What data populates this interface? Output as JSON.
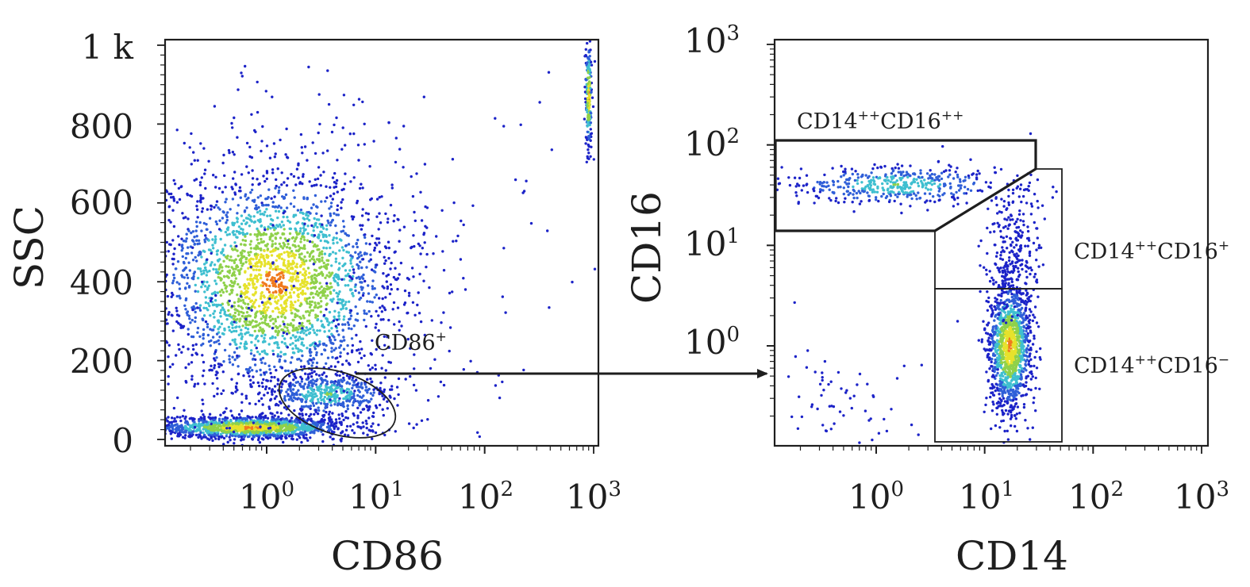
{
  "chart_data": [
    {
      "type": "scatter",
      "title": "",
      "xlabel": "CD86",
      "ylabel": "SSC",
      "x_scale": "log",
      "x_ticks": [
        "10⁰",
        "10¹",
        "10²",
        "10³"
      ],
      "x_tick_parts": [
        {
          "base": "10",
          "exp": "0"
        },
        {
          "base": "10",
          "exp": "1"
        },
        {
          "base": "10",
          "exp": "2"
        },
        {
          "base": "10",
          "exp": "3"
        }
      ],
      "y_ticks": [
        "0",
        "200",
        "400",
        "600",
        "800",
        "1 k"
      ],
      "xlim": [
        0.1,
        1000
      ],
      "ylim": [
        0,
        1000
      ],
      "grid": false,
      "color_scale": [
        "#1c23c8",
        "#2f5fd8",
        "#3fbfd0",
        "#8fd14a",
        "#e6e22c",
        "#f07a1e",
        "#e0261e"
      ],
      "populations": [
        {
          "name": "lymphocyte/debris cluster",
          "center": [
            0.7,
            30
          ],
          "spread": [
            0.45,
            14
          ],
          "count": 1400,
          "density": "high"
        },
        {
          "name": "granulocyte cloud",
          "center": [
            1.2,
            400
          ],
          "spread": [
            0.55,
            140
          ],
          "count": 2600,
          "density": "high"
        },
        {
          "name": "CD86 positive monocytes",
          "center": [
            3.6,
            115
          ],
          "spread": [
            0.28,
            28
          ],
          "count": 500,
          "density": "medium"
        },
        {
          "name": "saturated events",
          "center": [
            900,
            870
          ],
          "spread": [
            0.015,
            70
          ],
          "count": 220,
          "density": "high"
        },
        {
          "name": "background scatter",
          "center": [
            2.0,
            500
          ],
          "spread": [
            1.2,
            300
          ],
          "count": 350,
          "density": "low"
        }
      ],
      "gate": {
        "label": "CD86",
        "label_sup": "+",
        "shape": "ellipse",
        "center": [
          3.5,
          115
        ],
        "x_range": [
          1.2,
          10.5
        ],
        "y_range": [
          25,
          190
        ]
      }
    },
    {
      "type": "scatter",
      "title": "",
      "xlabel": "CD14",
      "ylabel": "CD16",
      "x_scale": "log",
      "y_scale": "log",
      "x_ticks": [
        "10⁰",
        "10¹",
        "10²",
        "10³"
      ],
      "x_tick_parts": [
        {
          "base": "10",
          "exp": "0"
        },
        {
          "base": "10",
          "exp": "1"
        },
        {
          "base": "10",
          "exp": "2"
        },
        {
          "base": "10",
          "exp": "3"
        }
      ],
      "y_ticks": [
        "10⁰",
        "10¹",
        "10²",
        "10³"
      ],
      "y_tick_parts": [
        {
          "base": "10",
          "exp": "0"
        },
        {
          "base": "10",
          "exp": "1"
        },
        {
          "base": "10",
          "exp": "2"
        },
        {
          "base": "10",
          "exp": "3"
        }
      ],
      "xlim": [
        0.1,
        1000
      ],
      "ylim": [
        0.1,
        1000
      ],
      "grid": false,
      "color_scale": [
        "#1c23c8",
        "#2f5fd8",
        "#3fbfd0",
        "#8fd14a",
        "#e6e22c",
        "#f07a1e",
        "#e0261e"
      ],
      "populations": [
        {
          "name": "CD14++CD16- classical monocytes",
          "center": [
            17,
            1.0
          ],
          "spread": [
            0.1,
            0.32
          ],
          "count": 1300,
          "density": "high"
        },
        {
          "name": "CD14++CD16++ band",
          "center": [
            1.5,
            40
          ],
          "spread": [
            0.5,
            0.1
          ],
          "count": 450,
          "density": "medium"
        },
        {
          "name": "CD14++CD16+ intermediate",
          "center": [
            18,
            9
          ],
          "spread": [
            0.12,
            0.35
          ],
          "count": 250,
          "density": "low"
        },
        {
          "name": "low events",
          "center": [
            0.4,
            0.3
          ],
          "spread": [
            0.35,
            0.3
          ],
          "count": 70,
          "density": "low"
        }
      ],
      "gates": [
        {
          "label": "CD14",
          "label_sup_a": "++",
          "label_b": "CD16",
          "label_sup_b": "++",
          "x_range": [
            0.1,
            28
          ],
          "y_range": [
            15,
            110
          ]
        },
        {
          "label": "CD14",
          "label_sup_a": "++",
          "label_b": "CD16",
          "label_sup_b": "+",
          "x_range": [
            3.1,
            42
          ],
          "y_range": [
            3.9,
            55
          ]
        },
        {
          "label": "CD14",
          "label_sup_a": "++",
          "label_b": "CD16",
          "label_sup_b": "−",
          "x_range": [
            3.1,
            42
          ],
          "y_range": [
            0.14,
            3.9
          ]
        }
      ]
    }
  ]
}
